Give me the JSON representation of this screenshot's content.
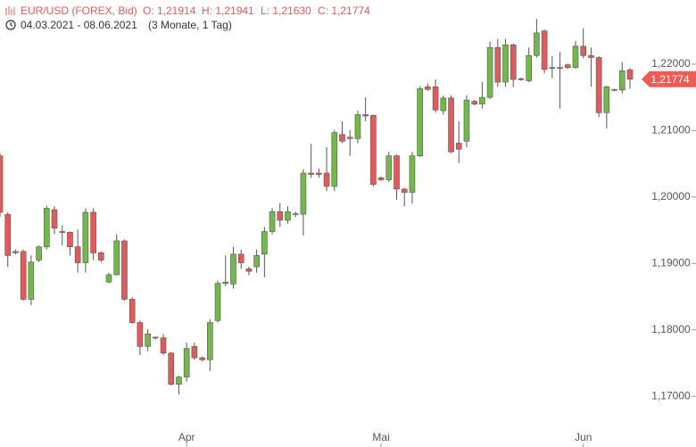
{
  "chart_data": {
    "type": "candlestick",
    "title": "EUR/USD (FOREX, Bid)",
    "ohlc_labels": [
      "O: 1,21914",
      "H: 1,21941",
      "L: 1,21630",
      "C: 1,21774"
    ],
    "period": "04.03.2021 - 08.06.2021",
    "period_note": "(3 Monate, 1 Tag)",
    "last_price_label": "1,21774",
    "up_color": "#72b84a",
    "down_color": "#e05c5c",
    "categories": [
      null,
      null,
      null,
      null,
      null,
      null,
      null,
      null,
      null,
      null,
      null,
      null,
      null,
      null,
      null,
      null,
      null,
      null,
      null,
      null,
      null,
      null,
      null,
      null,
      "Apr",
      null,
      null,
      null,
      null,
      null,
      null,
      null,
      null,
      null,
      null,
      null,
      null,
      null,
      null,
      null,
      null,
      null,
      null,
      null,
      null,
      null,
      null,
      null,
      null,
      "Mai",
      null,
      null,
      null,
      null,
      null,
      null,
      null,
      null,
      null,
      null,
      null,
      null,
      null,
      null,
      null,
      null,
      null,
      null,
      null,
      null,
      null,
      null,
      null,
      null,
      null,
      "Jun",
      null,
      null,
      null,
      null,
      null,
      null
    ],
    "open": [
      1.2062,
      1.1974,
      1.1918,
      1.1918,
      1.1846,
      1.1905,
      1.1925,
      1.1981,
      1.1948,
      1.1947,
      1.1925,
      1.1901,
      1.1977,
      1.1916,
      1.1872,
      1.1883,
      1.1934,
      1.1846,
      1.1811,
      1.1775,
      1.1789,
      1.1788,
      1.1765,
      1.1718,
      1.1729,
      1.1775,
      1.1758,
      1.1755,
      1.1814,
      1.187,
      1.1869,
      1.1914,
      1.1892,
      1.1895,
      1.1914,
      1.1948,
      1.1978,
      1.1965,
      1.1974,
      1.1974,
      1.2036,
      1.2036,
      1.2036,
      1.2016,
      1.2094,
      1.209,
      1.2088,
      1.2124,
      1.2123,
      1.2029,
      1.2026,
      1.2062,
      1.2012,
      1.2007,
      1.2062,
      1.2166,
      1.2166,
      1.213,
      1.2149,
      1.2081,
      1.2084,
      1.2144,
      1.214,
      1.215,
      1.2225,
      1.2173,
      1.2229,
      1.2178,
      1.2175,
      1.2213,
      1.225,
      1.2195,
      1.2195,
      1.2199,
      1.2195,
      1.2227,
      1.2213,
      1.221,
      1.2127,
      1.2161,
      1.2161,
      1.21914
    ],
    "high": [
      1.2066,
      1.1977,
      1.1921,
      1.1921,
      1.1912,
      1.1927,
      1.1987,
      1.1986,
      1.1957,
      1.1948,
      1.1951,
      1.1983,
      1.1983,
      1.1918,
      1.1886,
      1.1944,
      1.1936,
      1.1849,
      1.1814,
      1.1801,
      1.179,
      1.1794,
      1.1767,
      1.1731,
      1.1781,
      1.1781,
      1.176,
      1.1816,
      1.1874,
      1.1912,
      1.1925,
      1.1921,
      1.1895,
      1.1921,
      1.1955,
      1.1983,
      1.1991,
      1.1986,
      1.1978,
      1.2042,
      1.208,
      1.2043,
      1.2075,
      1.2101,
      1.2114,
      1.2101,
      1.213,
      1.215,
      1.2124,
      1.2031,
      1.2068,
      1.2064,
      1.2013,
      1.2068,
      1.2167,
      1.2171,
      1.2177,
      1.2153,
      1.2153,
      1.2114,
      1.2153,
      1.2146,
      1.2173,
      1.2234,
      1.2238,
      1.2238,
      1.2231,
      1.218,
      1.2225,
      1.2268,
      1.2252,
      1.2212,
      1.2218,
      1.2201,
      1.2235,
      1.2254,
      1.2225,
      1.2212,
      1.2168,
      1.2163,
      1.2203,
      1.21941
    ],
    "low": [
      1.197,
      1.1895,
      1.1914,
      1.1844,
      1.1837,
      1.1902,
      1.1921,
      1.1944,
      1.1927,
      1.1912,
      1.1886,
      1.1886,
      1.1905,
      1.1902,
      1.187,
      1.1882,
      1.1844,
      1.1809,
      1.1762,
      1.1768,
      1.1785,
      1.1762,
      1.1716,
      1.1703,
      1.1722,
      1.1755,
      1.1753,
      1.1738,
      1.1811,
      1.1866,
      1.1862,
      1.1892,
      1.1882,
      1.1886,
      1.1879,
      1.1944,
      1.1955,
      1.196,
      1.197,
      1.1942,
      1.2029,
      1.2029,
      1.2009,
      1.2009,
      1.2081,
      1.2062,
      1.2081,
      1.2114,
      1.2016,
      1.2024,
      1.2023,
      1.1996,
      1.1986,
      1.199,
      1.206,
      1.216,
      1.2127,
      1.2124,
      1.2066,
      1.2051,
      1.2075,
      1.2138,
      1.2133,
      1.2148,
      1.2166,
      1.2166,
      1.2166,
      1.2175,
      1.2173,
      1.221,
      1.2186,
      1.2179,
      1.2133,
      1.2193,
      1.2193,
      1.2209,
      1.2166,
      1.212,
      1.2103,
      1.2159,
      1.2156,
      1.2163
    ],
    "close": [
      1.1977,
      1.1912,
      1.1916,
      1.1846,
      1.1902,
      1.1925,
      1.1983,
      1.1953,
      1.1947,
      1.1925,
      1.1901,
      1.1977,
      1.1916,
      1.1905,
      1.1883,
      1.1934,
      1.1846,
      1.1811,
      1.1775,
      1.1794,
      1.1788,
      1.1765,
      1.1718,
      1.1729,
      1.1772,
      1.1758,
      1.1755,
      1.1811,
      1.187,
      1.1872,
      1.1914,
      1.1901,
      1.1888,
      1.1912,
      1.1948,
      1.1978,
      1.1965,
      1.1978,
      1.1975,
      1.2036,
      1.2034,
      1.2034,
      1.2016,
      1.2097,
      1.2084,
      1.2088,
      1.2124,
      1.2122,
      1.2019,
      1.2026,
      1.2062,
      1.2012,
      1.2007,
      1.2062,
      1.2163,
      1.2162,
      1.2131,
      1.2149,
      1.2068,
      1.2072,
      1.2146,
      1.214,
      1.215,
      1.2225,
      1.2173,
      1.2229,
      1.2177,
      1.2177,
      1.2213,
      1.2247,
      1.2192,
      1.2194,
      1.2194,
      1.2195,
      1.2227,
      1.2213,
      1.221,
      1.2127,
      1.2166,
      1.2162,
      1.219,
      1.21774
    ],
    "ylim": [
      1.16465,
      1.22966
    ],
    "yticks": [
      {
        "value": 1.17,
        "label": "1,17000"
      },
      {
        "value": 1.18,
        "label": "1,18000"
      },
      {
        "value": 1.19,
        "label": "1,19000"
      },
      {
        "value": 1.2,
        "label": "1,20000"
      },
      {
        "value": 1.21,
        "label": "1,21000"
      },
      {
        "value": 1.22,
        "label": "1,22000"
      }
    ]
  }
}
